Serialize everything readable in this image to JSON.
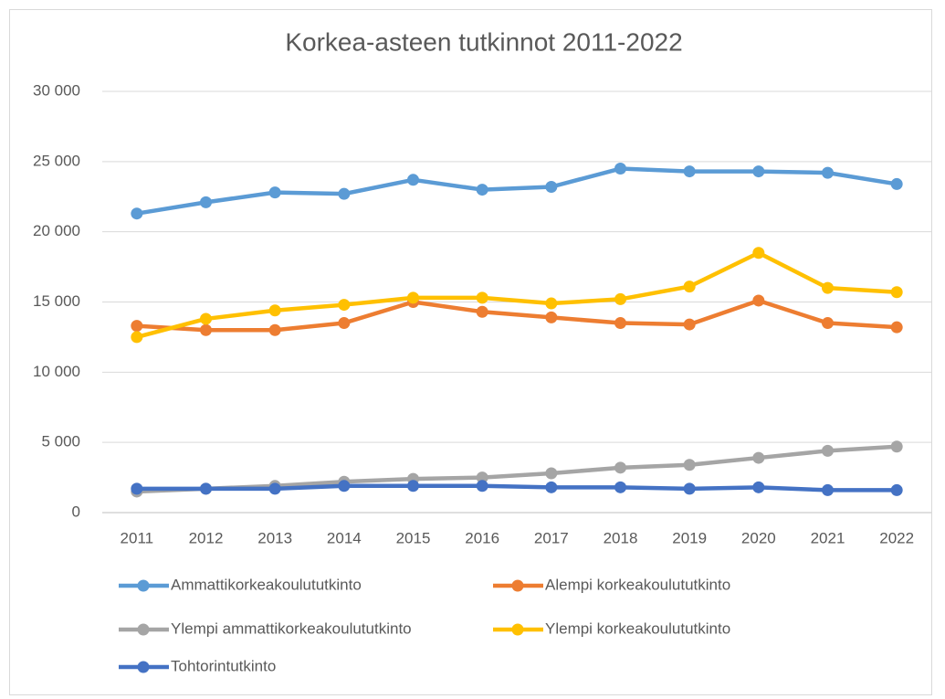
{
  "chart_data": {
    "type": "line",
    "title": "Korkea-asteen tutkinnot 2011-2022",
    "categories": [
      "2011",
      "2012",
      "2013",
      "2014",
      "2015",
      "2016",
      "2017",
      "2018",
      "2019",
      "2020",
      "2021",
      "2022"
    ],
    "series": [
      {
        "name": "Ammattikorkeakoulututkinto",
        "color": "#5b9bd5",
        "values": [
          21300,
          22100,
          22800,
          22700,
          23700,
          23000,
          23200,
          24500,
          24300,
          24300,
          24200,
          23400
        ]
      },
      {
        "name": "Alempi korkeakoulututkinto",
        "color": "#ed7d31",
        "values": [
          13300,
          13000,
          13000,
          13500,
          15000,
          14300,
          13900,
          13500,
          13400,
          15100,
          13500,
          13200
        ]
      },
      {
        "name": "Ylempi ammattikorkeakoulututkinto",
        "color": "#a5a5a5",
        "values": [
          1500,
          1700,
          1900,
          2200,
          2400,
          2500,
          2800,
          3200,
          3400,
          3900,
          4400,
          4700
        ]
      },
      {
        "name": "Ylempi korkeakoulututkinto",
        "color": "#ffc000",
        "values": [
          12500,
          13800,
          14400,
          14800,
          15300,
          15300,
          14900,
          15200,
          16100,
          18500,
          16000,
          15700
        ]
      },
      {
        "name": "Tohtorintutkinto",
        "color": "#4472c4",
        "values": [
          1700,
          1700,
          1700,
          1900,
          1900,
          1900,
          1800,
          1800,
          1700,
          1800,
          1600,
          1600
        ]
      }
    ],
    "ylim": [
      0,
      30000
    ],
    "yticks": [
      0,
      {
        "value": 5000,
        "label": "5 000"
      },
      {
        "value": 10000,
        "label": "10 000"
      },
      {
        "value": 15000,
        "label": "15 000"
      },
      {
        "value": 20000,
        "label": "20 000"
      },
      {
        "value": 25000,
        "label": "25 000"
      },
      {
        "value": 30000,
        "label": "30 000"
      }
    ],
    "grid": true
  }
}
